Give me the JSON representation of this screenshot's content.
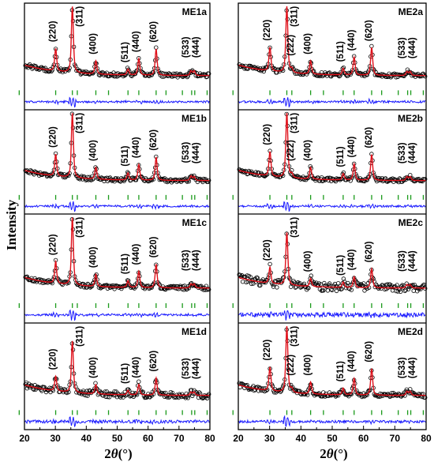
{
  "chart_data": {
    "type": "scatter",
    "ylabel": "Intensity",
    "xlabel": {
      "prefix": "2",
      "symbol": "θ",
      "unit": "(°)"
    },
    "xlim": [
      20,
      80
    ],
    "xticks": [
      20,
      30,
      40,
      50,
      60,
      70,
      80
    ],
    "colors": {
      "observed": "#000000",
      "calculated": "#e0101a",
      "difference": "#1a1aff",
      "bragg": "#1a9a1a"
    },
    "legend": "none",
    "grid": false,
    "panels": [
      {
        "label": "ME1a",
        "column": 1,
        "row": 1,
        "noise": 0.03,
        "has222": false,
        "peaks": [
          {
            "hkl": "(220)",
            "x": 30.1,
            "h": 0.34
          },
          {
            "hkl": "(311)",
            "x": 35.5,
            "h": 1.0
          },
          {
            "hkl": "(400)",
            "x": 43.1,
            "h": 0.2
          },
          {
            "hkl": "(511)",
            "x": 53.5,
            "h": 0.09
          },
          {
            "hkl": "(440)",
            "x": 57.0,
            "h": 0.25
          },
          {
            "hkl": "(620)",
            "x": 62.6,
            "h": 0.4
          },
          {
            "hkl": "(533)",
            "x": 73.9,
            "h": 0.07
          },
          {
            "hkl": "(444)",
            "x": 74.9,
            "h": 0.07
          }
        ]
      },
      {
        "label": "ME1b",
        "column": 1,
        "row": 2,
        "noise": 0.03,
        "has222": false,
        "peaks": [
          {
            "hkl": "(220)",
            "x": 30.1,
            "h": 0.34
          },
          {
            "hkl": "(311)",
            "x": 35.5,
            "h": 1.0
          },
          {
            "hkl": "(400)",
            "x": 43.1,
            "h": 0.18
          },
          {
            "hkl": "(511)",
            "x": 53.5,
            "h": 0.11
          },
          {
            "hkl": "(440)",
            "x": 57.0,
            "h": 0.24
          },
          {
            "hkl": "(620)",
            "x": 62.6,
            "h": 0.36
          },
          {
            "hkl": "(533)",
            "x": 73.9,
            "h": 0.07
          },
          {
            "hkl": "(444)",
            "x": 74.9,
            "h": 0.06
          }
        ]
      },
      {
        "label": "ME1c",
        "column": 1,
        "row": 3,
        "noise": 0.03,
        "has222": false,
        "peaks": [
          {
            "hkl": "(220)",
            "x": 30.1,
            "h": 0.32
          },
          {
            "hkl": "(311)",
            "x": 35.5,
            "h": 1.0
          },
          {
            "hkl": "(400)",
            "x": 43.1,
            "h": 0.18
          },
          {
            "hkl": "(511)",
            "x": 53.5,
            "h": 0.1
          },
          {
            "hkl": "(440)",
            "x": 57.0,
            "h": 0.24
          },
          {
            "hkl": "(620)",
            "x": 62.6,
            "h": 0.35
          },
          {
            "hkl": "(533)",
            "x": 73.9,
            "h": 0.06
          },
          {
            "hkl": "(444)",
            "x": 74.9,
            "h": 0.06
          }
        ]
      },
      {
        "label": "ME1d",
        "column": 1,
        "row": 4,
        "noise": 0.045,
        "has222": false,
        "peaks": [
          {
            "hkl": "(220)",
            "x": 30.1,
            "h": 0.22
          },
          {
            "hkl": "(311)",
            "x": 35.5,
            "h": 0.78
          },
          {
            "hkl": "(400)",
            "x": 43.1,
            "h": 0.14
          },
          {
            "hkl": "(511)",
            "x": 53.5,
            "h": 0.07
          },
          {
            "hkl": "(440)",
            "x": 57.0,
            "h": 0.16
          },
          {
            "hkl": "(620)",
            "x": 62.6,
            "h": 0.26
          },
          {
            "hkl": "(533)",
            "x": 73.9,
            "h": 0.05
          },
          {
            "hkl": "(444)",
            "x": 74.9,
            "h": 0.05
          }
        ]
      },
      {
        "label": "ME2a",
        "column": 2,
        "row": 1,
        "noise": 0.03,
        "has222": true,
        "peaks": [
          {
            "hkl": "(220)",
            "x": 30.1,
            "h": 0.36
          },
          {
            "hkl": "(311)",
            "x": 35.5,
            "h": 1.0
          },
          {
            "hkl": "(222)",
            "x": 37.1,
            "h": 0.06
          },
          {
            "hkl": "(400)",
            "x": 43.1,
            "h": 0.2
          },
          {
            "hkl": "(511)",
            "x": 53.5,
            "h": 0.1
          },
          {
            "hkl": "(440)",
            "x": 57.0,
            "h": 0.27
          },
          {
            "hkl": "(620)",
            "x": 62.6,
            "h": 0.42
          },
          {
            "hkl": "(533)",
            "x": 73.9,
            "h": 0.06
          },
          {
            "hkl": "(444)",
            "x": 74.9,
            "h": 0.06
          }
        ]
      },
      {
        "label": "ME2b",
        "column": 2,
        "row": 2,
        "noise": 0.03,
        "has222": true,
        "peaks": [
          {
            "hkl": "(220)",
            "x": 30.1,
            "h": 0.38
          },
          {
            "hkl": "(311)",
            "x": 35.5,
            "h": 1.0
          },
          {
            "hkl": "(222)",
            "x": 37.1,
            "h": 0.06
          },
          {
            "hkl": "(400)",
            "x": 43.1,
            "h": 0.18
          },
          {
            "hkl": "(511)",
            "x": 53.5,
            "h": 0.1
          },
          {
            "hkl": "(440)",
            "x": 57.0,
            "h": 0.25
          },
          {
            "hkl": "(620)",
            "x": 62.6,
            "h": 0.4
          },
          {
            "hkl": "(533)",
            "x": 73.9,
            "h": 0.06
          },
          {
            "hkl": "(444)",
            "x": 74.9,
            "h": 0.06
          }
        ]
      },
      {
        "label": "ME2c",
        "column": 2,
        "row": 3,
        "noise": 0.06,
        "has222": false,
        "peaks": [
          {
            "hkl": "(220)",
            "x": 30.1,
            "h": 0.24
          },
          {
            "hkl": "(311)",
            "x": 35.5,
            "h": 0.78
          },
          {
            "hkl": "(400)",
            "x": 43.1,
            "h": 0.12
          },
          {
            "hkl": "(511)",
            "x": 53.5,
            "h": 0.08
          },
          {
            "hkl": "(440)",
            "x": 57.0,
            "h": 0.16
          },
          {
            "hkl": "(620)",
            "x": 62.6,
            "h": 0.28
          },
          {
            "hkl": "(533)",
            "x": 73.9,
            "h": 0.05
          },
          {
            "hkl": "(444)",
            "x": 74.9,
            "h": 0.05
          }
        ]
      },
      {
        "label": "ME2d",
        "column": 2,
        "row": 4,
        "noise": 0.035,
        "has222": true,
        "peaks": [
          {
            "hkl": "(220)",
            "x": 30.1,
            "h": 0.36
          },
          {
            "hkl": "(311)",
            "x": 35.5,
            "h": 1.0
          },
          {
            "hkl": "(222)",
            "x": 37.1,
            "h": 0.06
          },
          {
            "hkl": "(400)",
            "x": 43.1,
            "h": 0.18
          },
          {
            "hkl": "(511)",
            "x": 53.5,
            "h": 0.1
          },
          {
            "hkl": "(440)",
            "x": 57.0,
            "h": 0.25
          },
          {
            "hkl": "(620)",
            "x": 62.6,
            "h": 0.4
          },
          {
            "hkl": "(533)",
            "x": 73.9,
            "h": 0.06
          },
          {
            "hkl": "(444)",
            "x": 74.9,
            "h": 0.06
          }
        ]
      }
    ]
  }
}
